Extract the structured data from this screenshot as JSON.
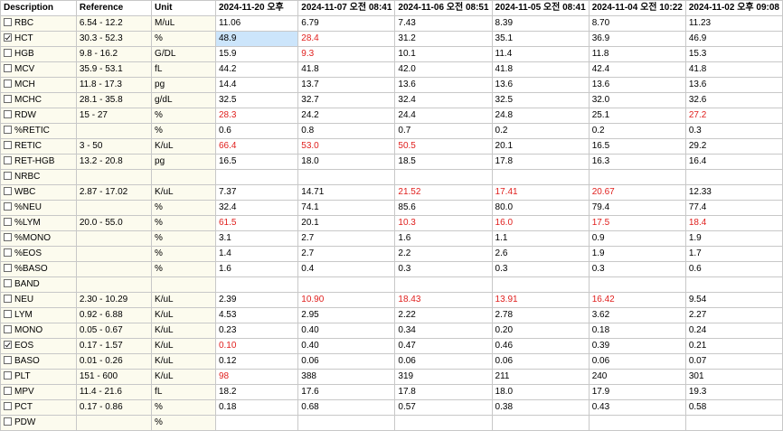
{
  "headers": [
    "Description",
    "Reference",
    "Unit",
    "2024-11-20 오후",
    "2024-11-07 오전 08:41",
    "2024-11-06 오전 08:51",
    "2024-11-05 오전 08:41",
    "2024-11-04 오전 10:22",
    "2024-11-02 오후 09:08"
  ],
  "colors": {
    "abnormal": "#e0201e",
    "label_bg": "#fcfbee",
    "selected_bg": "#cce5fb"
  },
  "rows": [
    {
      "desc": "RBC",
      "ref": "6.54 - 12.2",
      "unit": "M/uL",
      "checked": false,
      "values": [
        "11.06",
        "6.79",
        "7.43",
        "8.39",
        "8.70",
        "11.23"
      ],
      "red": [
        false,
        false,
        false,
        false,
        false,
        false
      ]
    },
    {
      "desc": "HCT",
      "ref": "30.3 - 52.3",
      "unit": "%",
      "checked": true,
      "values": [
        "48.9",
        "28.4",
        "31.2",
        "35.1",
        "36.9",
        "46.9"
      ],
      "red": [
        false,
        true,
        false,
        false,
        false,
        false
      ]
    },
    {
      "desc": "HGB",
      "ref": "9.8 - 16.2",
      "unit": "G/DL",
      "checked": false,
      "values": [
        "15.9",
        "9.3",
        "10.1",
        "11.4",
        "11.8",
        "15.3"
      ],
      "red": [
        false,
        true,
        false,
        false,
        false,
        false
      ]
    },
    {
      "desc": "MCV",
      "ref": "35.9 - 53.1",
      "unit": "fL",
      "checked": false,
      "values": [
        "44.2",
        "41.8",
        "42.0",
        "41.8",
        "42.4",
        "41.8"
      ],
      "red": [
        false,
        false,
        false,
        false,
        false,
        false
      ]
    },
    {
      "desc": "MCH",
      "ref": "11.8 - 17.3",
      "unit": "pg",
      "checked": false,
      "values": [
        "14.4",
        "13.7",
        "13.6",
        "13.6",
        "13.6",
        "13.6"
      ],
      "red": [
        false,
        false,
        false,
        false,
        false,
        false
      ]
    },
    {
      "desc": "MCHC",
      "ref": "28.1 - 35.8",
      "unit": "g/dL",
      "checked": false,
      "values": [
        "32.5",
        "32.7",
        "32.4",
        "32.5",
        "32.0",
        "32.6"
      ],
      "red": [
        false,
        false,
        false,
        false,
        false,
        false
      ]
    },
    {
      "desc": "RDW",
      "ref": "15 - 27",
      "unit": "%",
      "checked": false,
      "values": [
        "28.3",
        "24.2",
        "24.4",
        "24.8",
        "25.1",
        "27.2"
      ],
      "red": [
        true,
        false,
        false,
        false,
        false,
        true
      ]
    },
    {
      "desc": "%RETIC",
      "ref": "",
      "unit": "%",
      "checked": false,
      "values": [
        "0.6",
        "0.8",
        "0.7",
        "0.2",
        "0.2",
        "0.3"
      ],
      "red": [
        false,
        false,
        false,
        false,
        false,
        false
      ]
    },
    {
      "desc": "RETIC",
      "ref": "3 - 50",
      "unit": "K/uL",
      "checked": false,
      "values": [
        "66.4",
        "53.0",
        "50.5",
        "20.1",
        "16.5",
        "29.2"
      ],
      "red": [
        true,
        true,
        true,
        false,
        false,
        false
      ]
    },
    {
      "desc": "RET-HGB",
      "ref": "13.2 - 20.8",
      "unit": "pg",
      "checked": false,
      "values": [
        "16.5",
        "18.0",
        "18.5",
        "17.8",
        "16.3",
        "16.4"
      ],
      "red": [
        false,
        false,
        false,
        false,
        false,
        false
      ]
    },
    {
      "desc": "NRBC",
      "ref": "",
      "unit": "",
      "checked": false,
      "values": [
        "",
        "",
        "",
        "",
        "",
        ""
      ],
      "red": [
        false,
        false,
        false,
        false,
        false,
        false
      ]
    },
    {
      "desc": "WBC",
      "ref": "2.87 - 17.02",
      "unit": "K/uL",
      "checked": false,
      "values": [
        "7.37",
        "14.71",
        "21.52",
        "17.41",
        "20.67",
        "12.33"
      ],
      "red": [
        false,
        false,
        true,
        true,
        true,
        false
      ]
    },
    {
      "desc": "%NEU",
      "ref": "",
      "unit": "%",
      "checked": false,
      "values": [
        "32.4",
        "74.1",
        "85.6",
        "80.0",
        "79.4",
        "77.4"
      ],
      "red": [
        false,
        false,
        false,
        false,
        false,
        false
      ]
    },
    {
      "desc": "%LYM",
      "ref": "20.0 - 55.0",
      "unit": "%",
      "checked": false,
      "values": [
        "61.5",
        "20.1",
        "10.3",
        "16.0",
        "17.5",
        "18.4"
      ],
      "red": [
        true,
        false,
        true,
        true,
        true,
        true
      ]
    },
    {
      "desc": "%MONO",
      "ref": "",
      "unit": "%",
      "checked": false,
      "values": [
        "3.1",
        "2.7",
        "1.6",
        "1.1",
        "0.9",
        "1.9"
      ],
      "red": [
        false,
        false,
        false,
        false,
        false,
        false
      ]
    },
    {
      "desc": "%EOS",
      "ref": "",
      "unit": "%",
      "checked": false,
      "values": [
        "1.4",
        "2.7",
        "2.2",
        "2.6",
        "1.9",
        "1.7"
      ],
      "red": [
        false,
        false,
        false,
        false,
        false,
        false
      ]
    },
    {
      "desc": "%BASO",
      "ref": "",
      "unit": "%",
      "checked": false,
      "values": [
        "1.6",
        "0.4",
        "0.3",
        "0.3",
        "0.3",
        "0.6"
      ],
      "red": [
        false,
        false,
        false,
        false,
        false,
        false
      ]
    },
    {
      "desc": "BAND",
      "ref": "",
      "unit": "",
      "checked": false,
      "values": [
        "",
        "",
        "",
        "",
        "",
        ""
      ],
      "red": [
        false,
        false,
        false,
        false,
        false,
        false
      ]
    },
    {
      "desc": "NEU",
      "ref": "2.30 - 10.29",
      "unit": "K/uL",
      "checked": false,
      "values": [
        "2.39",
        "10.90",
        "18.43",
        "13.91",
        "16.42",
        "9.54"
      ],
      "red": [
        false,
        true,
        true,
        true,
        true,
        false
      ]
    },
    {
      "desc": "LYM",
      "ref": "0.92 - 6.88",
      "unit": "K/uL",
      "checked": false,
      "values": [
        "4.53",
        "2.95",
        "2.22",
        "2.78",
        "3.62",
        "2.27"
      ],
      "red": [
        false,
        false,
        false,
        false,
        false,
        false
      ]
    },
    {
      "desc": "MONO",
      "ref": "0.05 - 0.67",
      "unit": "K/uL",
      "checked": false,
      "values": [
        "0.23",
        "0.40",
        "0.34",
        "0.20",
        "0.18",
        "0.24"
      ],
      "red": [
        false,
        false,
        false,
        false,
        false,
        false
      ]
    },
    {
      "desc": "EOS",
      "ref": "0.17 - 1.57",
      "unit": "K/uL",
      "checked": true,
      "values": [
        "0.10",
        "0.40",
        "0.47",
        "0.46",
        "0.39",
        "0.21"
      ],
      "red": [
        true,
        false,
        false,
        false,
        false,
        false
      ]
    },
    {
      "desc": "BASO",
      "ref": "0.01 - 0.26",
      "unit": "K/uL",
      "checked": false,
      "values": [
        "0.12",
        "0.06",
        "0.06",
        "0.06",
        "0.06",
        "0.07"
      ],
      "red": [
        false,
        false,
        false,
        false,
        false,
        false
      ]
    },
    {
      "desc": "PLT",
      "ref": "151 - 600",
      "unit": "K/uL",
      "checked": false,
      "values": [
        "98",
        "388",
        "319",
        "211",
        "240",
        "301"
      ],
      "red": [
        true,
        false,
        false,
        false,
        false,
        false
      ]
    },
    {
      "desc": "MPV",
      "ref": "11.4 - 21.6",
      "unit": "fL",
      "checked": false,
      "values": [
        "18.2",
        "17.6",
        "17.8",
        "18.0",
        "17.9",
        "19.3"
      ],
      "red": [
        false,
        false,
        false,
        false,
        false,
        false
      ]
    },
    {
      "desc": "PCT",
      "ref": "0.17 - 0.86",
      "unit": "%",
      "checked": false,
      "values": [
        "0.18",
        "0.68",
        "0.57",
        "0.38",
        "0.43",
        "0.58"
      ],
      "red": [
        false,
        false,
        false,
        false,
        false,
        false
      ]
    },
    {
      "desc": "PDW",
      "ref": "",
      "unit": "%",
      "checked": false,
      "values": [
        "",
        "",
        "",
        "",
        "",
        ""
      ],
      "red": [
        false,
        false,
        false,
        false,
        false,
        false
      ]
    }
  ]
}
